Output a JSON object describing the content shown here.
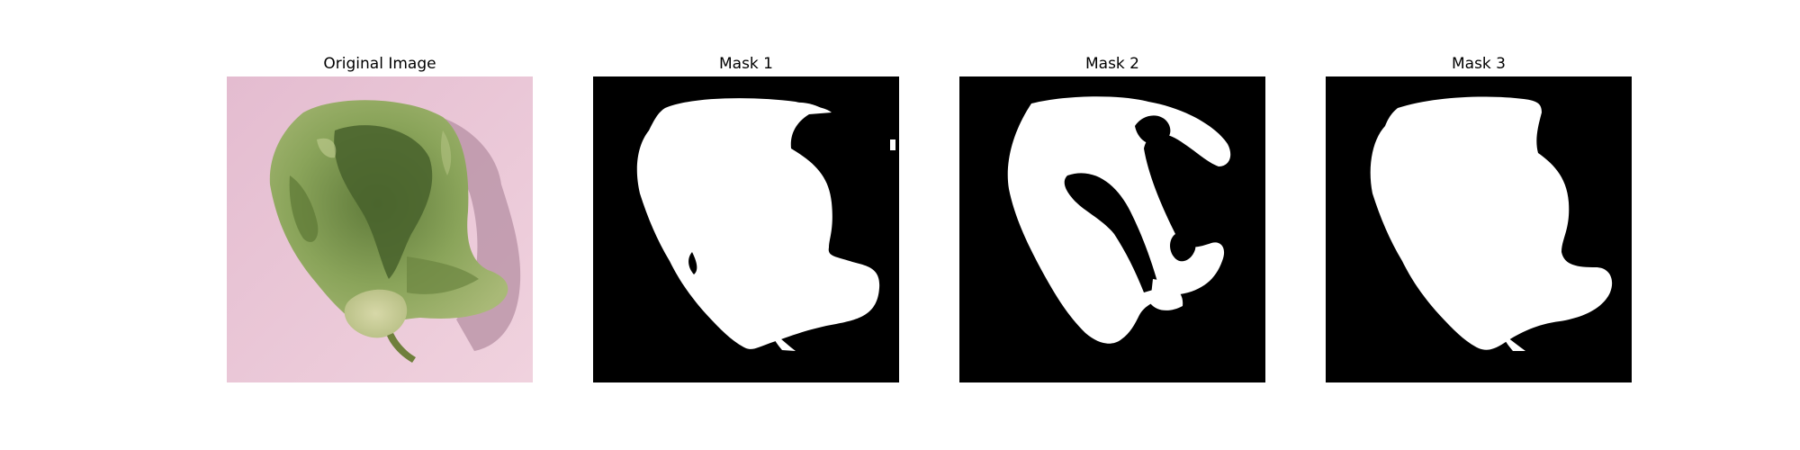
{
  "figure": {
    "panels": [
      {
        "title": "Original Image"
      },
      {
        "title": "Mask 1"
      },
      {
        "title": "Mask 2"
      },
      {
        "title": "Mask 3"
      }
    ],
    "colors": {
      "background": "#ffffff",
      "mask_background": "#000000",
      "mask_foreground": "#ffffff",
      "photo_backdrop": "#e9c6d5",
      "leaf_green": "#7f9a4a"
    }
  }
}
